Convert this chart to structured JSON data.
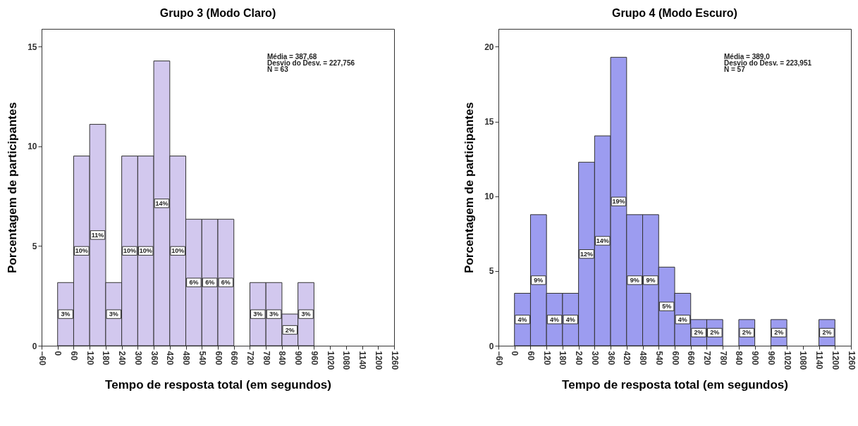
{
  "chart_data": [
    {
      "type": "histogram",
      "title": "Grupo 3 (Modo Claro)",
      "xlabel": "Tempo de resposta total (em segundos)",
      "ylabel": "Porcentagem de participantes",
      "bins": [
        0,
        60,
        120,
        180,
        240,
        300,
        360,
        420,
        480,
        540,
        600,
        660,
        720,
        780,
        840,
        900,
        960
      ],
      "values": [
        3.17,
        9.52,
        11.11,
        3.17,
        9.52,
        9.52,
        14.29,
        9.52,
        6.35,
        6.35,
        6.35,
        0,
        3.17,
        3.17,
        1.59,
        3.17
      ],
      "value_labels": [
        "3%",
        "10%",
        "11%",
        "3%",
        "10%",
        "10%",
        "14%",
        "10%",
        "6%",
        "6%",
        "6%",
        null,
        "3%",
        "3%",
        "2%",
        "3%"
      ],
      "color": "#d2c8ee",
      "xlim": [
        -60,
        1260
      ],
      "xticks": [
        -60,
        0,
        60,
        120,
        180,
        240,
        300,
        360,
        420,
        480,
        540,
        600,
        660,
        720,
        780,
        840,
        900,
        960,
        1020,
        1080,
        1140,
        1200,
        1260
      ],
      "ylim": [
        0,
        15.9
      ],
      "yticks": [
        0,
        5,
        10,
        15
      ],
      "grid": false,
      "annotations": [
        "Média = 387,68",
        " Desvio do Desv. =  227,756",
        "N = 63"
      ]
    },
    {
      "type": "histogram",
      "title": "Grupo 4 (Modo Escuro)",
      "xlabel": "Tempo de resposta total (em segundos)",
      "ylabel": "Porcentagem de participantes",
      "bins": [
        0,
        60,
        120,
        180,
        240,
        300,
        360,
        420,
        480,
        540,
        600,
        660,
        720,
        780,
        840,
        900,
        960,
        1020,
        1080,
        1140,
        1200
      ],
      "values": [
        3.51,
        8.77,
        3.51,
        3.51,
        12.28,
        14.04,
        19.3,
        8.77,
        8.77,
        5.26,
        3.51,
        1.75,
        1.75,
        0,
        1.75,
        0,
        1.75,
        0,
        0,
        1.75
      ],
      "value_labels": [
        "4%",
        "9%",
        "4%",
        "4%",
        "12%",
        "14%",
        "19%",
        "9%",
        "9%",
        "5%",
        "4%",
        "2%",
        "2%",
        null,
        "2%",
        null,
        "2%",
        null,
        null,
        "2%"
      ],
      "color": "#9c9cf0",
      "xlim": [
        -60,
        1260
      ],
      "xticks": [
        -60,
        0,
        60,
        120,
        180,
        240,
        300,
        360,
        420,
        480,
        540,
        600,
        660,
        720,
        780,
        840,
        900,
        960,
        1020,
        1080,
        1140,
        1200,
        1260
      ],
      "ylim": [
        0,
        21.2
      ],
      "yticks": [
        0,
        5,
        10,
        15,
        20
      ],
      "grid": false,
      "annotations": [
        "Média = 389,0",
        " Desvio do Desv. =  223,951",
        "N = 57"
      ]
    }
  ]
}
